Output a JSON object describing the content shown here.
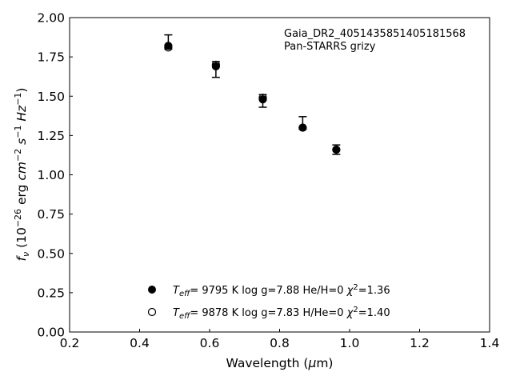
{
  "chart_data": {
    "type": "scatter",
    "xlabel": "Wavelength (μm)",
    "ylabel": "f_ν (10^-26 erg cm^-2 s^-1 Hz^-1)",
    "xlim": [
      0.2,
      1.4
    ],
    "ylim": [
      0.0,
      2.0
    ],
    "x_ticks": [
      "0.2",
      "0.4",
      "0.6",
      "0.8",
      "1.0",
      "1.2",
      "1.4"
    ],
    "y_ticks": [
      "0.00",
      "0.25",
      "0.50",
      "0.75",
      "1.00",
      "1.25",
      "1.50",
      "1.75",
      "2.00"
    ],
    "grid": false,
    "annotation": [
      "Gaia_DR2_4051435851405181568",
      "Pan-STARRS grizy"
    ],
    "observed": {
      "x": [
        0.482,
        0.618,
        0.752,
        0.866,
        0.962
      ],
      "y": [
        1.82,
        1.7,
        1.49,
        1.3,
        1.16
      ],
      "yerr_low": [
        1.8,
        1.62,
        1.43,
        1.29,
        1.13
      ],
      "yerr_high": [
        1.89,
        1.72,
        1.51,
        1.37,
        1.19
      ]
    },
    "series": [
      {
        "marker": "filled",
        "legend": {
          "teff": "9795 K",
          "logg": "log g=7.88",
          "comp": "He/H=0",
          "chi2": "=1.36"
        },
        "x": [
          0.482,
          0.618,
          0.752,
          0.866,
          0.962
        ],
        "y": [
          1.82,
          1.69,
          1.48,
          1.3,
          1.16
        ]
      },
      {
        "marker": "open",
        "legend": {
          "teff": "9878 K",
          "logg": "log g=7.83",
          "comp": "H/He=0",
          "chi2": "=1.40"
        },
        "x": [
          0.482,
          0.618,
          0.752,
          0.866,
          0.962
        ],
        "y": [
          1.81,
          1.7,
          1.49,
          1.3,
          1.16
        ]
      }
    ],
    "legend_position": "bottom-center"
  }
}
